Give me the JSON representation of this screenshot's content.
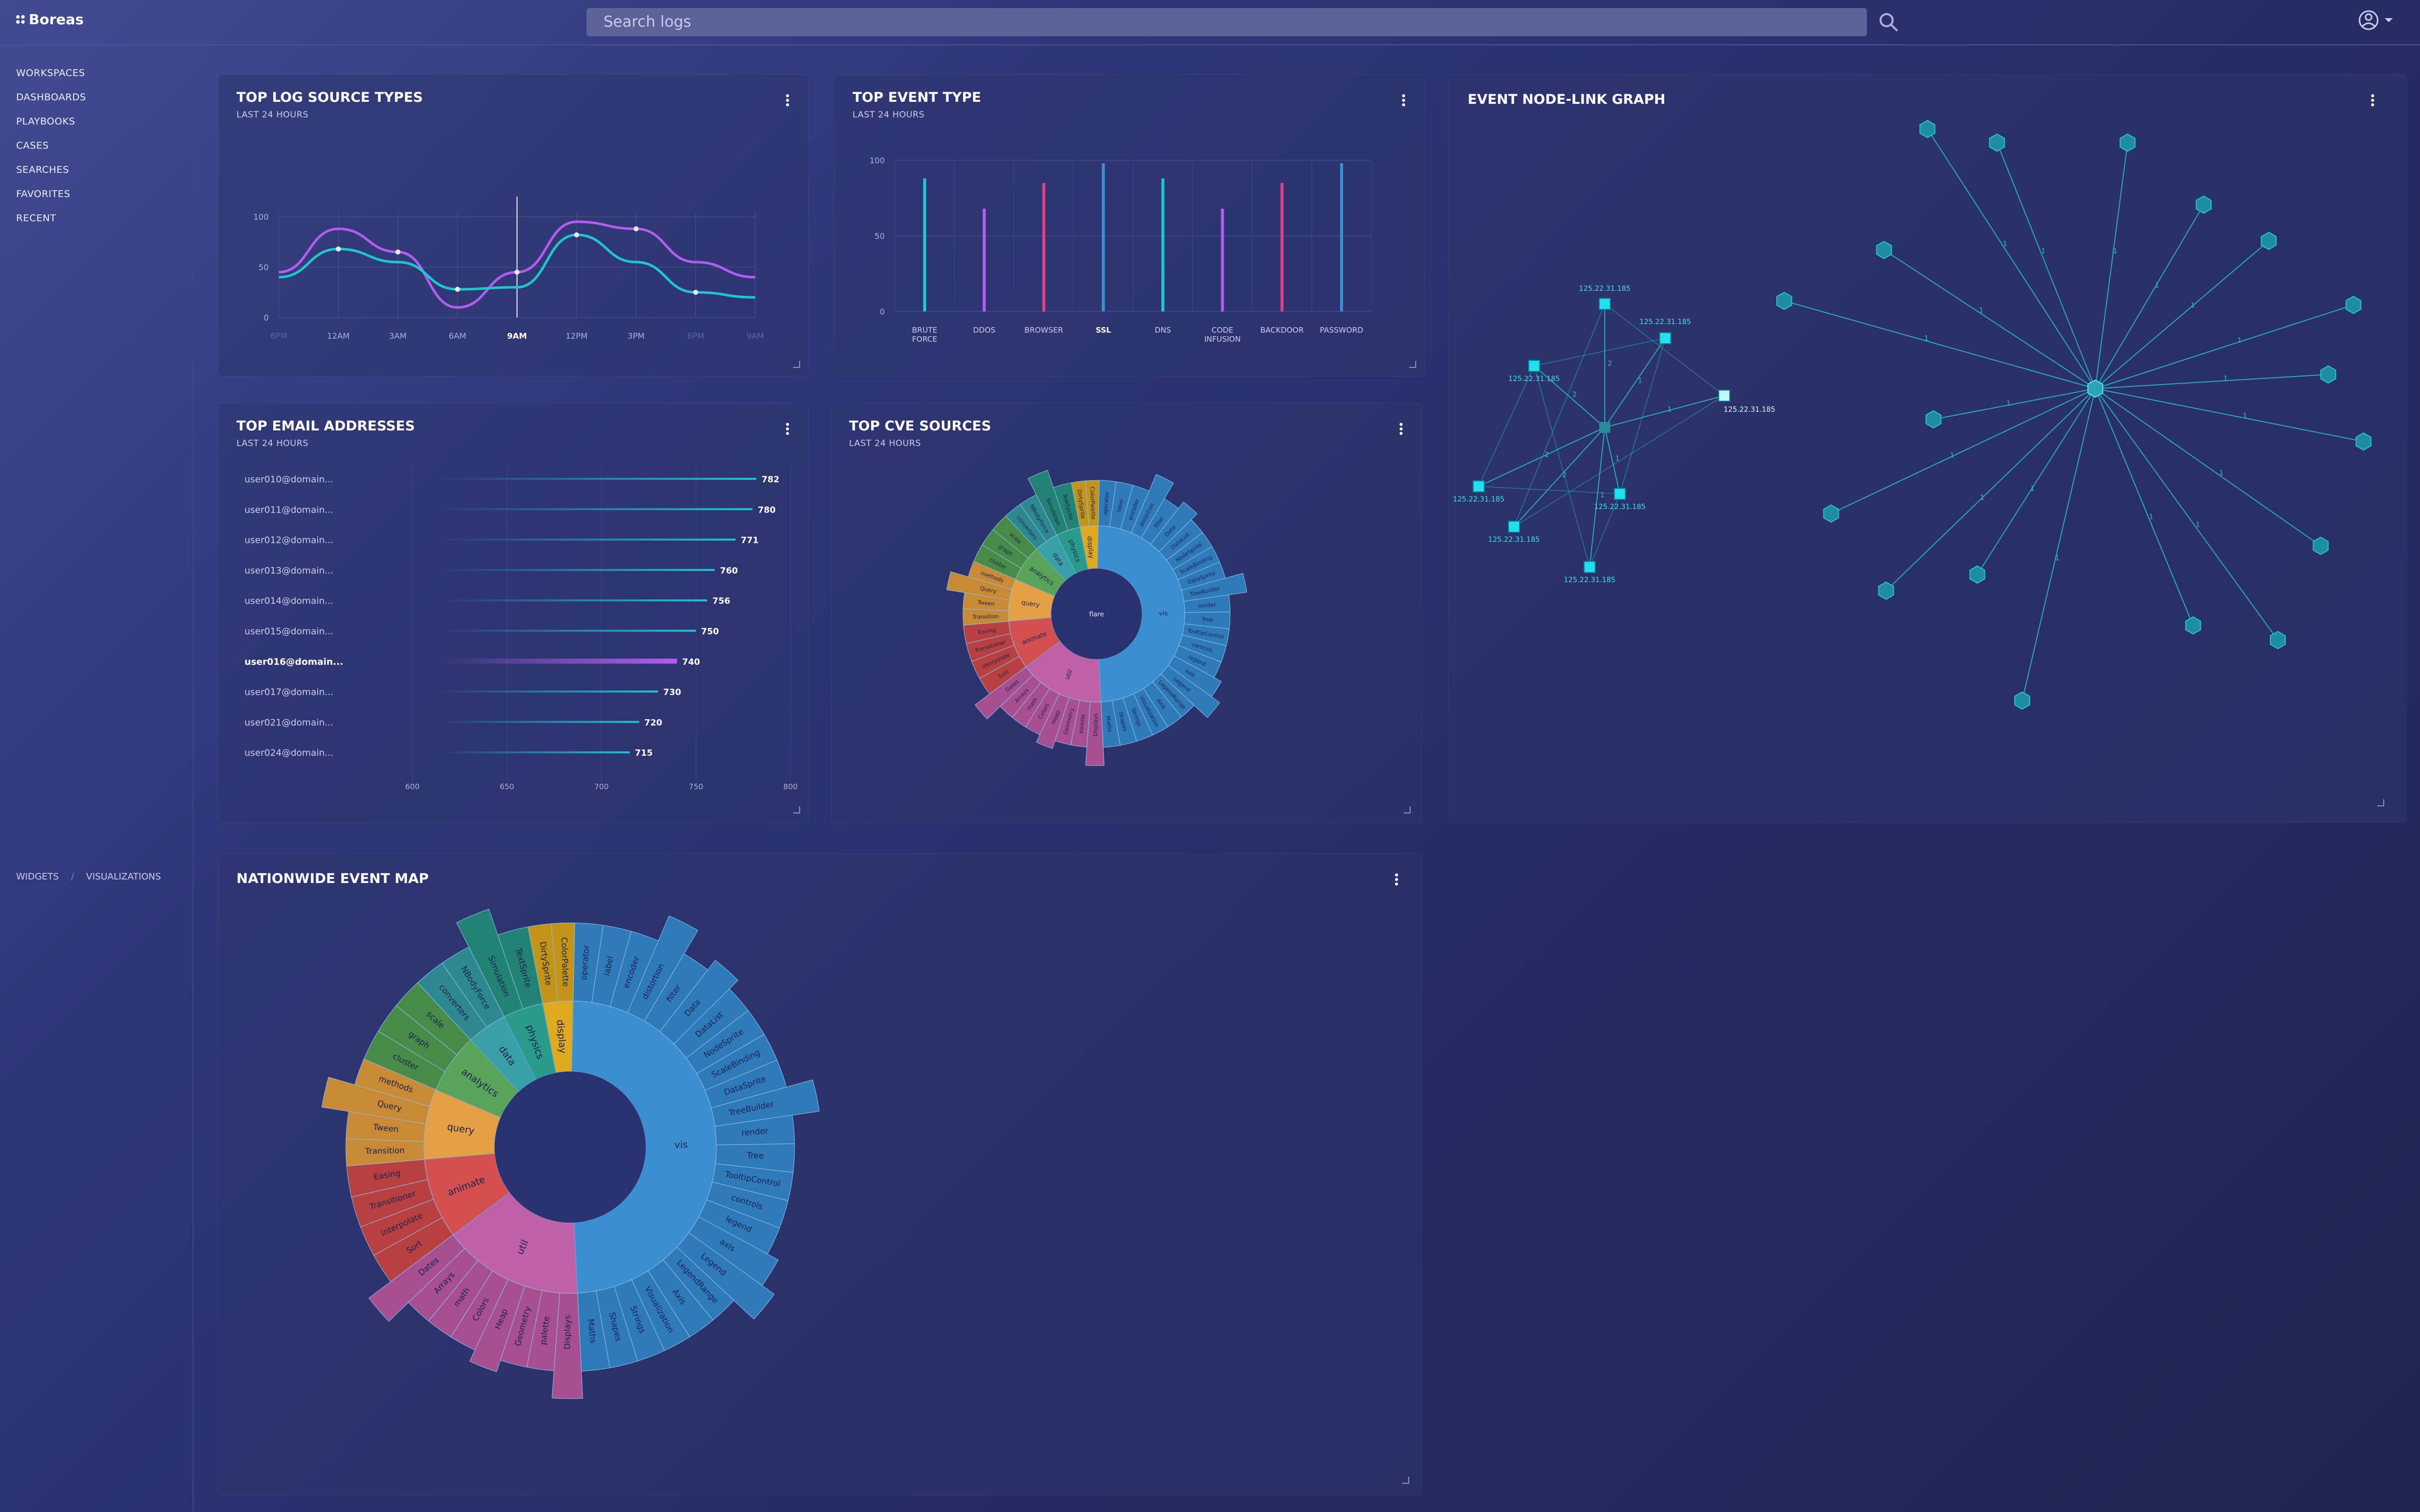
{
  "app": {
    "title": "Boreas"
  },
  "search": {
    "placeholder": "Search logs"
  },
  "sidebar": {
    "items": [
      {
        "label": "WORKSPACES"
      },
      {
        "label": "DASHBOARDS"
      },
      {
        "label": "PLAYBOOKS"
      },
      {
        "label": "CASES"
      },
      {
        "label": "SEARCHES"
      },
      {
        "label": "FAVORITES"
      },
      {
        "label": "RECENT"
      }
    ]
  },
  "breadcrumb": {
    "widgets": "WIDGETS",
    "sep": "/",
    "visualizations": "VISUALIZATIONS"
  },
  "colors": {
    "purple": "#b25df0",
    "teal": "#1ec6cf",
    "pink": "#e13f8b",
    "blue": "#3a8fd0"
  },
  "panels": {
    "log_sources": {
      "title": "TOP LOG SOURCE TYPES",
      "subtitle": "LAST 24 HOURS"
    },
    "event_type": {
      "title": "TOP EVENT TYPE",
      "subtitle": "LAST 24 HOURS"
    },
    "node_graph": {
      "title": "EVENT NODE-LINK GRAPH"
    },
    "email": {
      "title": "TOP EMAIL ADDRESSES",
      "subtitle": "LAST 24 HOURS"
    },
    "cve": {
      "title": "TOP CVE SOURCES",
      "subtitle": "LAST 24 HOURS"
    },
    "map": {
      "title": "NATIONWIDE EVENT MAP"
    }
  },
  "chart_data": [
    {
      "type": "line",
      "title": "TOP LOG SOURCE TYPES",
      "x": [
        "6PM",
        "12AM",
        "3AM",
        "6AM",
        "9AM",
        "12PM",
        "3PM",
        "6PM",
        "9AM"
      ],
      "highlight_x": "9AM",
      "ylim": [
        0,
        100
      ],
      "yticks": [
        0,
        50,
        100
      ],
      "series": [
        {
          "name": "purple",
          "values": [
            45,
            88,
            65,
            10,
            45,
            95,
            88,
            55,
            40
          ]
        },
        {
          "name": "teal",
          "values": [
            40,
            68,
            55,
            28,
            30,
            82,
            55,
            25,
            20
          ]
        }
      ]
    },
    {
      "type": "bar",
      "title": "TOP EVENT TYPE",
      "categories": [
        "BRUTE FORCE",
        "DDOS",
        "BROWSER",
        "SSL",
        "DNS",
        "CODE INFUSION",
        "BACKDOOR",
        "PASSWORD"
      ],
      "highlight": "SSL",
      "ylim": [
        0,
        100
      ],
      "yticks": [
        0,
        50,
        100
      ],
      "values": [
        88,
        68,
        85,
        98,
        88,
        68,
        85,
        98
      ],
      "bar_colors": [
        "#1ec6cf",
        "#b25df0",
        "#e13f8b",
        "#3a8fd0",
        "#1ec6cf",
        "#b25df0",
        "#e13f8b",
        "#3a8fd0"
      ]
    },
    {
      "type": "bar",
      "orientation": "horizontal",
      "title": "TOP EMAIL ADDRESSES",
      "xlim": [
        600,
        800
      ],
      "xticks": [
        600,
        650,
        700,
        750,
        800
      ],
      "highlight": "user016@domain...",
      "categories": [
        "user010@domain...",
        "user011@domain...",
        "user012@domain...",
        "user013@domain...",
        "user014@domain...",
        "user015@domain...",
        "user016@domain...",
        "user017@domain...",
        "user021@domain...",
        "user024@domain..."
      ],
      "values": [
        782,
        780,
        771,
        760,
        756,
        750,
        740,
        730,
        720,
        715
      ]
    },
    {
      "type": "graph",
      "title": "EVENT NODE-LINK GRAPH",
      "node_label": "125.22.31.185",
      "edge_labels": [
        "1",
        "2"
      ]
    },
    {
      "type": "sunburst",
      "title": "TOP CVE SOURCES",
      "center": "flare",
      "inner": [
        {
          "name": "vis",
          "value": 44
        },
        {
          "name": "util",
          "value": 14
        },
        {
          "name": "animate",
          "value": 8
        },
        {
          "name": "query",
          "value": 7
        },
        {
          "name": "analytics",
          "value": 6
        },
        {
          "name": "data",
          "value": 4
        },
        {
          "name": "physics",
          "value": 4
        },
        {
          "name": "display",
          "value": 3
        }
      ],
      "outer_labels": [
        "operator",
        "label",
        "encoder",
        "distortion",
        "filter",
        "Data",
        "DataList",
        "NodeSprite",
        "ScaleBinding",
        "DataSprite",
        "TreeBuilder",
        "render",
        "Tree",
        "TooltipControl",
        "controls",
        "legend",
        "axis",
        "Legend",
        "LegendRange",
        "Axis",
        "Visualization",
        "Strings",
        "Shapes",
        "Maths",
        "Displays",
        "palette",
        "Geometry",
        "Heap",
        "Colors",
        "math",
        "Arrays",
        "Dates",
        "Sort",
        "interpolate",
        "Transitioner",
        "Easing",
        "Transition",
        "Tween",
        "Query",
        "methods",
        "cluster",
        "graph",
        "scale",
        "converters",
        "NBodyForce",
        "Simulation",
        "TextSprite",
        "DirtySprite",
        "ColorPalette",
        "Interpolator"
      ]
    },
    {
      "type": "sunburst",
      "title": "NATIONWIDE EVENT MAP",
      "inner": [
        {
          "name": "vis",
          "value": 44
        },
        {
          "name": "util",
          "value": 14
        },
        {
          "name": "animate",
          "value": 8
        },
        {
          "name": "query",
          "value": 7
        },
        {
          "name": "analytics",
          "value": 6
        },
        {
          "name": "data",
          "value": 4
        },
        {
          "name": "physics",
          "value": 4
        },
        {
          "name": "display",
          "value": 3
        }
      ],
      "outer_labels": [
        "operator",
        "label",
        "encoder",
        "distortion",
        "filter",
        "Data",
        "DataList",
        "NodeSprite",
        "ScaleBinding",
        "DataSprite",
        "TreeBuilder",
        "render",
        "Tree",
        "TooltipControl",
        "controls",
        "legend",
        "axis",
        "Legend",
        "LegendRange",
        "Axis",
        "Visualization",
        "Strings",
        "Shapes",
        "Maths",
        "Displays",
        "palette",
        "Geometry",
        "Heap",
        "Colors",
        "math",
        "Arrays",
        "Dates",
        "Sort",
        "interpolate",
        "Transitioner",
        "Easing",
        "Transition",
        "Tween",
        "Query",
        "methods",
        "cluster",
        "graph",
        "scale",
        "converters",
        "NBodyForce",
        "Simulation",
        "TextSprite",
        "DirtySprite",
        "ColorPalette",
        "Interpolator"
      ]
    }
  ]
}
